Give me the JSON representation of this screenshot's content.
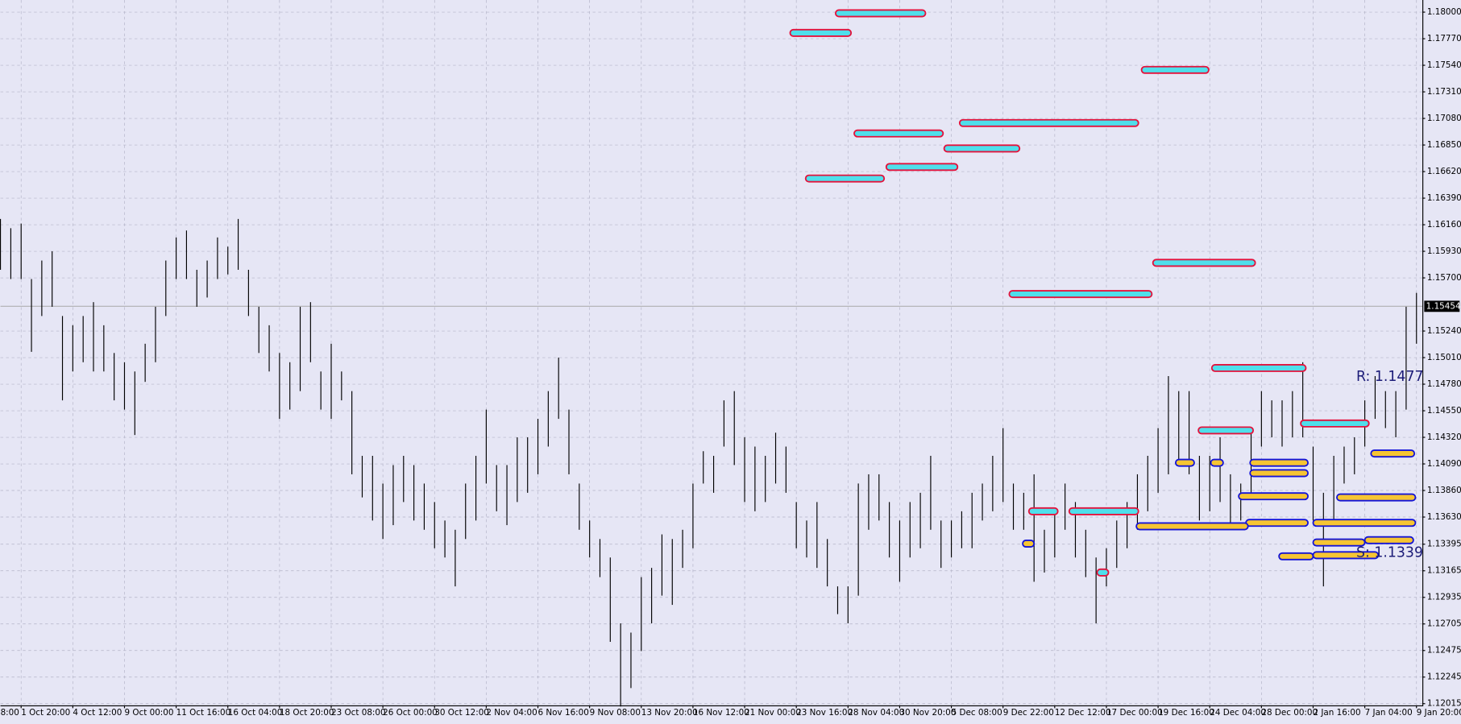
{
  "chart_data": {
    "type": "ohlc",
    "xlim": [
      3,
      140.57
    ],
    "ylim": [
      1.12,
      1.18105
    ],
    "grid": true,
    "bar_color": "#000000",
    "x": [
      3,
      4,
      5,
      6,
      7,
      8,
      9,
      10,
      11,
      12,
      13,
      14,
      15,
      16,
      17,
      18,
      19,
      20,
      21,
      22,
      23,
      24,
      25,
      26,
      27,
      28,
      29,
      30,
      31,
      32,
      33,
      34,
      35,
      36,
      37,
      38,
      39,
      40,
      41,
      42,
      43,
      44,
      45,
      46,
      47,
      48,
      49,
      50,
      51,
      52,
      53,
      54,
      55,
      56,
      57,
      58,
      59,
      60,
      61,
      62,
      63,
      64,
      65,
      66,
      67,
      68,
      69,
      70,
      71,
      72,
      73,
      74,
      75,
      76,
      77,
      78,
      79,
      80,
      81,
      82,
      83,
      84,
      85,
      86,
      87,
      88,
      89,
      90,
      91,
      92,
      93,
      94,
      95,
      96,
      97,
      98,
      99,
      100,
      101,
      102,
      103,
      104,
      105,
      106,
      107,
      108,
      109,
      110,
      111,
      112,
      113,
      114,
      115,
      116,
      117,
      118,
      119,
      120,
      121,
      122,
      123,
      124,
      125,
      126,
      127,
      128,
      129,
      130,
      131,
      132,
      133,
      134,
      135,
      136,
      137,
      138,
      139,
      140
    ],
    "high": [
      1.1621,
      1.1613,
      1.1617,
      1.1569,
      1.1585,
      1.1593,
      1.1537,
      1.1529,
      1.1537,
      1.1549,
      1.1529,
      1.1505,
      1.1497,
      1.1489,
      1.1513,
      1.1545,
      1.1585,
      1.1605,
      1.1611,
      1.1577,
      1.1585,
      1.1605,
      1.1597,
      1.1621,
      1.1577,
      1.1545,
      1.1529,
      1.1505,
      1.1497,
      1.1545,
      1.1549,
      1.1489,
      1.1513,
      1.1489,
      1.1472,
      1.1416,
      1.1416,
      1.1392,
      1.1408,
      1.1416,
      1.1408,
      1.1392,
      1.1376,
      1.136,
      1.1352,
      1.1392,
      1.1416,
      1.1456,
      1.1408,
      1.1408,
      1.1432,
      1.1432,
      1.1448,
      1.1472,
      1.1501,
      1.1456,
      1.1392,
      1.136,
      1.1344,
      1.1328,
      1.1271,
      1.1263,
      1.1311,
      1.1319,
      1.1348,
      1.1344,
      1.1352,
      1.1392,
      1.142,
      1.1416,
      1.1464,
      1.1472,
      1.1432,
      1.1424,
      1.1416,
      1.1436,
      1.1424,
      1.1376,
      1.136,
      1.1376,
      1.1344,
      1.1303,
      1.1303,
      1.1392,
      1.14,
      1.14,
      1.1376,
      1.136,
      1.1376,
      1.1384,
      1.1416,
      1.136,
      1.136,
      1.1368,
      1.1384,
      1.1392,
      1.1416,
      1.144,
      1.1392,
      1.1384,
      1.14,
      1.1352,
      1.1368,
      1.1392,
      1.1376,
      1.1352,
      1.1328,
      1.1336,
      1.136,
      1.1376,
      1.14,
      1.1416,
      1.144,
      1.1485,
      1.1472,
      1.1472,
      1.1416,
      1.1416,
      1.1432,
      1.14,
      1.1392,
      1.144,
      1.1472,
      1.1464,
      1.1464,
      1.1472,
      1.1497,
      1.1424,
      1.1384,
      1.1416,
      1.1424,
      1.1432,
      1.1464,
      1.1485,
      1.1472,
      1.1472,
      1.1545,
      1.1557
    ],
    "low": [
      1.1577,
      1.1569,
      1.1569,
      1.1506,
      1.1537,
      1.1545,
      1.1464,
      1.1489,
      1.1497,
      1.1489,
      1.1489,
      1.1464,
      1.1456,
      1.1434,
      1.148,
      1.1497,
      1.1537,
      1.1569,
      1.1569,
      1.1545,
      1.1553,
      1.1569,
      1.1573,
      1.1577,
      1.1537,
      1.1505,
      1.1489,
      1.1448,
      1.1456,
      1.1472,
      1.1497,
      1.1456,
      1.1448,
      1.1464,
      1.14,
      1.138,
      1.136,
      1.1344,
      1.1356,
      1.1376,
      1.136,
      1.1352,
      1.1336,
      1.1328,
      1.1303,
      1.1344,
      1.136,
      1.1392,
      1.1368,
      1.1356,
      1.1376,
      1.1384,
      1.14,
      1.1424,
      1.1448,
      1.14,
      1.1352,
      1.1328,
      1.1311,
      1.1255,
      1.1199,
      1.1215,
      1.1247,
      1.1271,
      1.1295,
      1.1287,
      1.1319,
      1.1336,
      1.1392,
      1.1384,
      1.1424,
      1.1408,
      1.1376,
      1.1368,
      1.1376,
      1.1392,
      1.1384,
      1.1336,
      1.1328,
      1.1319,
      1.1303,
      1.1279,
      1.1271,
      1.1295,
      1.1352,
      1.136,
      1.1328,
      1.1307,
      1.1328,
      1.1336,
      1.1352,
      1.1319,
      1.1328,
      1.1336,
      1.1336,
      1.136,
      1.1368,
      1.1376,
      1.1352,
      1.1352,
      1.1307,
      1.1315,
      1.1328,
      1.1352,
      1.1328,
      1.1311,
      1.1271,
      1.1303,
      1.1319,
      1.1336,
      1.1352,
      1.1368,
      1.1384,
      1.14,
      1.1408,
      1.14,
      1.136,
      1.1368,
      1.1376,
      1.1352,
      1.136,
      1.1384,
      1.1424,
      1.1432,
      1.1424,
      1.1432,
      1.1432,
      1.136,
      1.1303,
      1.136,
      1.1392,
      1.14,
      1.1424,
      1.1448,
      1.144,
      1.1432,
      1.1456,
      1.1513
    ],
    "supply_zones": {
      "fill": "#4fdfeb",
      "stroke": "#e3123c",
      "zones": [
        {
          "price": 1.1799,
          "start": 83.8,
          "end": 92.5
        },
        {
          "price": 1.1782,
          "start": 79.4,
          "end": 85.3
        },
        {
          "price": 1.175,
          "start": 113.4,
          "end": 119.9
        },
        {
          "price": 1.1704,
          "start": 95.8,
          "end": 113.1
        },
        {
          "price": 1.1695,
          "start": 85.6,
          "end": 94.2
        },
        {
          "price": 1.1682,
          "start": 94.3,
          "end": 101.6
        },
        {
          "price": 1.1666,
          "start": 88.7,
          "end": 95.6
        },
        {
          "price": 1.1656,
          "start": 80.9,
          "end": 88.5
        },
        {
          "price": 1.1583,
          "start": 114.5,
          "end": 124.4
        },
        {
          "price": 1.1556,
          "start": 100.6,
          "end": 114.4
        },
        {
          "price": 1.1492,
          "start": 120.2,
          "end": 129.3
        },
        {
          "price": 1.1444,
          "start": 128.8,
          "end": 135.4
        },
        {
          "price": 1.1438,
          "start": 118.9,
          "end": 124.2
        },
        {
          "price": 1.1368,
          "start": 102.5,
          "end": 105.3
        },
        {
          "price": 1.1368,
          "start": 106.4,
          "end": 113.1
        },
        {
          "price": 1.1315,
          "start": 109.1,
          "end": 110.2
        }
      ]
    },
    "demand_zones": {
      "fill": "#f6c532",
      "stroke": "#1414d6",
      "zones": [
        {
          "price": 1.1418,
          "start": 135.6,
          "end": 139.8
        },
        {
          "price": 1.141,
          "start": 116.7,
          "end": 118.5
        },
        {
          "price": 1.141,
          "start": 120.1,
          "end": 121.3
        },
        {
          "price": 1.141,
          "start": 123.9,
          "end": 129.5
        },
        {
          "price": 1.1401,
          "start": 123.9,
          "end": 129.5
        },
        {
          "price": 1.1381,
          "start": 122.8,
          "end": 129.5
        },
        {
          "price": 1.138,
          "start": 132.3,
          "end": 139.9
        },
        {
          "price": 1.1358,
          "start": 123.5,
          "end": 129.5
        },
        {
          "price": 1.1358,
          "start": 130.0,
          "end": 139.9
        },
        {
          "price": 1.1355,
          "start": 112.9,
          "end": 123.7
        },
        {
          "price": 1.1341,
          "start": 130.0,
          "end": 135.0
        },
        {
          "price": 1.1343,
          "start": 135.0,
          "end": 139.7
        },
        {
          "price": 1.134,
          "start": 101.9,
          "end": 103.0
        },
        {
          "price": 1.1329,
          "start": 126.7,
          "end": 130.0
        },
        {
          "price": 1.133,
          "start": 130.0,
          "end": 136.3
        }
      ]
    },
    "last_price": 1.15454,
    "annotations": [
      {
        "text": "R: 1.1477"
      },
      {
        "text": "S: 1.1339"
      }
    ],
    "yticks": [
      {
        "value": 1.18,
        "label": "1.18000"
      },
      {
        "value": 1.1777,
        "label": "1.17770"
      },
      {
        "value": 1.1754,
        "label": "1.17540"
      },
      {
        "value": 1.1731,
        "label": "1.17310"
      },
      {
        "value": 1.1708,
        "label": "1.17080"
      },
      {
        "value": 1.1685,
        "label": "1.16850"
      },
      {
        "value": 1.1662,
        "label": "1.16620"
      },
      {
        "value": 1.1639,
        "label": "1.16390"
      },
      {
        "value": 1.1616,
        "label": "1.16160"
      },
      {
        "value": 1.1593,
        "label": "1.15930"
      },
      {
        "value": 1.157,
        "label": "1.15700"
      },
      {
        "value": 1.1524,
        "label": "1.15240"
      },
      {
        "value": 1.1501,
        "label": "1.15010"
      },
      {
        "value": 1.1478,
        "label": "1.14780"
      },
      {
        "value": 1.1455,
        "label": "1.14550"
      },
      {
        "value": 1.1432,
        "label": "1.14320"
      },
      {
        "value": 1.1409,
        "label": "1.14090"
      },
      {
        "value": 1.1386,
        "label": "1.13860"
      },
      {
        "value": 1.1363,
        "label": "1.13630"
      },
      1.13395,
      {
        "value": 1.13165,
        "label": "1.13165"
      },
      {
        "value": 1.12935,
        "label": "1.12935"
      },
      {
        "value": 1.12705,
        "label": "1.12705"
      },
      {
        "value": 1.12475,
        "label": "1.12475"
      },
      {
        "value": 1.12245,
        "label": "1.12245"
      },
      {
        "value": 1.12015,
        "label": "1.12015"
      }
    ],
    "xticks": [
      {
        "value": 0,
        "label": "8:00"
      },
      {
        "value": 5,
        "label": "1 Oct 20:00"
      },
      {
        "value": 10,
        "label": "4 Oct 12:00"
      },
      {
        "value": 15,
        "label": "9 Oct 00:00"
      },
      {
        "value": 20,
        "label": "11 Oct 16:00"
      },
      {
        "value": 25,
        "label": "16 Oct 04:00"
      },
      {
        "value": 30,
        "label": "18 Oct 20:00"
      },
      {
        "value": 35,
        "label": "23 Oct 08:00"
      },
      {
        "value": 40,
        "label": "26 Oct 00:00"
      },
      {
        "value": 45,
        "label": "30 Oct 12:00"
      },
      {
        "value": 50,
        "label": "2 Nov 04:00"
      },
      {
        "value": 55,
        "label": "6 Nov 16:00"
      },
      {
        "value": 60,
        "label": "9 Nov 08:00"
      },
      {
        "value": 65,
        "label": "13 Nov 20:00"
      },
      {
        "value": 70,
        "label": "16 Nov 12:00"
      },
      {
        "value": 75,
        "label": "21 Nov 00:00"
      },
      {
        "value": 80,
        "label": "23 Nov 16:00"
      },
      {
        "value": 85,
        "label": "28 Nov 04:00"
      },
      {
        "value": 90,
        "label": "30 Nov 20:00"
      },
      {
        "value": 95,
        "label": "5 Dec 08:00"
      },
      {
        "value": 100,
        "label": "9 Dec 22:00"
      },
      {
        "value": 105,
        "label": "12 Dec 12:00"
      },
      {
        "value": 110,
        "label": "17 Dec 00:00"
      },
      {
        "value": 115,
        "label": "19 Dec 16:00"
      },
      {
        "value": 120,
        "label": "24 Dec 04:00"
      },
      {
        "value": 125,
        "label": "28 Dec 00:00"
      },
      {
        "value": 130,
        "label": "2 Jan 16:00"
      },
      {
        "value": 135,
        "label": "7 Jan 04:00"
      },
      {
        "value": 140,
        "label": "9 Jan 20:00"
      }
    ]
  }
}
